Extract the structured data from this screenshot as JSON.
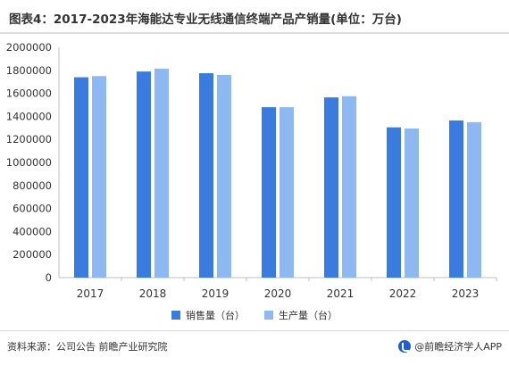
{
  "title": "图表4：2017-2023年海能达专业无线通信终端产品产销量(单位：万台)",
  "footer": {
    "source": "资料来源：公司公告 前瞻产业研究院",
    "brand": "@前瞻经济学人APP"
  },
  "colors": {
    "sales": "#3a7be0",
    "production": "#8db8f2",
    "axis": "#bfbfbf",
    "text": "#333333"
  },
  "chart_data": {
    "type": "bar",
    "categories": [
      "2017",
      "2018",
      "2019",
      "2020",
      "2021",
      "2022",
      "2023"
    ],
    "series": [
      {
        "name": "销售量（台）",
        "values": [
          1740000,
          1790000,
          1775000,
          1480000,
          1565000,
          1305000,
          1365000
        ]
      },
      {
        "name": "生产量（台）",
        "values": [
          1750000,
          1815000,
          1760000,
          1480000,
          1575000,
          1295000,
          1350000
        ]
      }
    ],
    "ylim": [
      0,
      2000000
    ],
    "yticks": [
      "2000000",
      "1800000",
      "1600000",
      "1400000",
      "1200000",
      "1000000",
      "800000",
      "600000",
      "400000",
      "200000",
      "0"
    ],
    "legend_position": "bottom",
    "grid": false
  }
}
